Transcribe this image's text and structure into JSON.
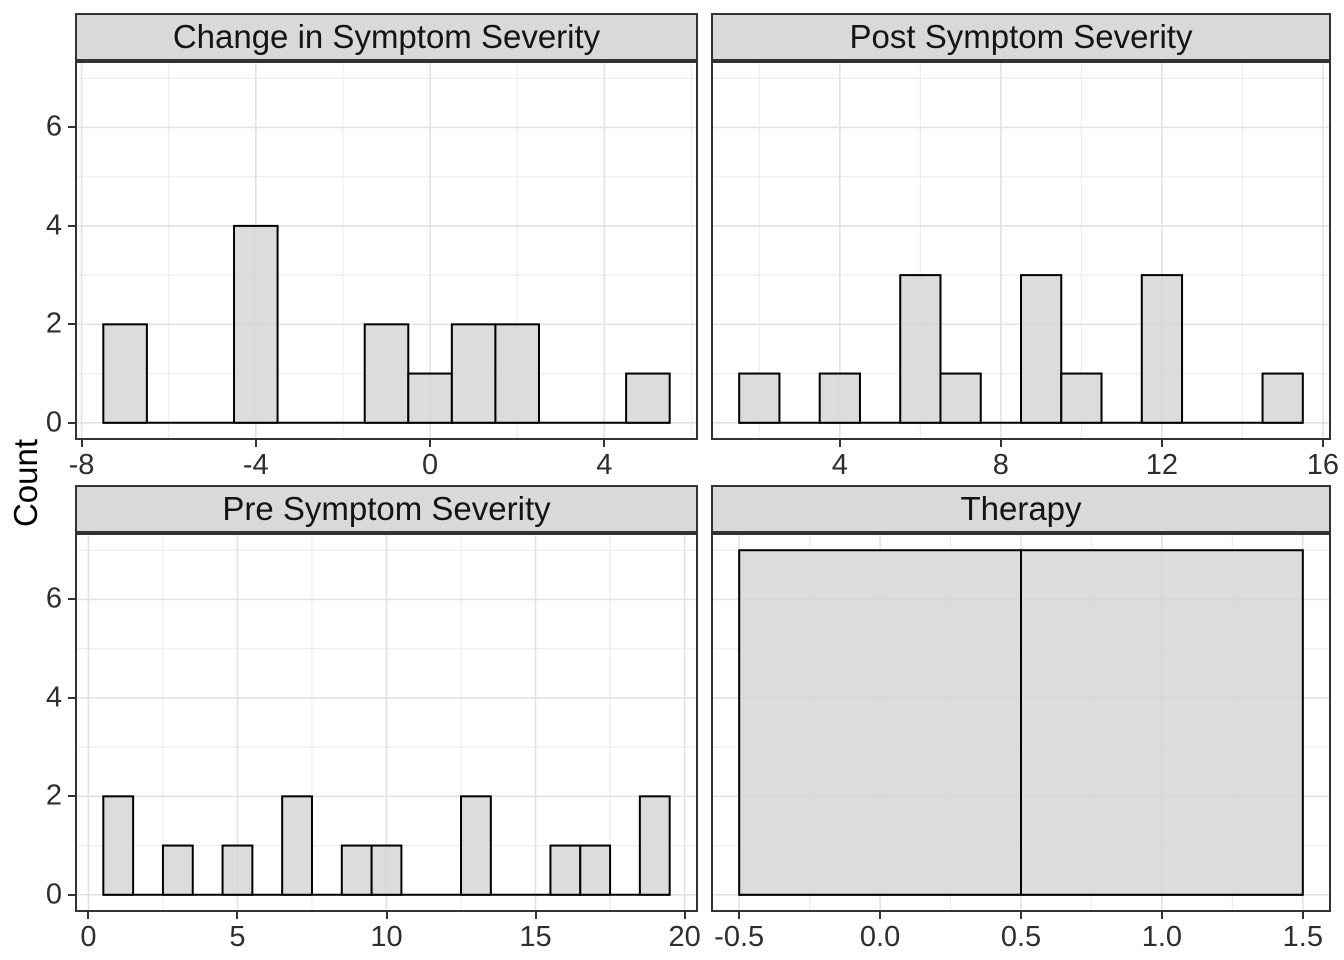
{
  "figure": {
    "y_axis_title": "Count"
  },
  "style": {
    "strip_background": "#d9d9d9",
    "strip_border": "#333333",
    "panel_background": "#ffffff",
    "panel_border": "#333333",
    "grid_major": "#e3e3e3",
    "grid_minor": "#eeeeee",
    "bar_fill": "#d4d4d4",
    "bar_stroke": "#000000",
    "tick_color": "#333333"
  },
  "chart_data": {
    "type": "bar",
    "subtype": "faceted-histograms",
    "ylabel": "Count",
    "grid": "on",
    "y": {
      "range": [
        -0.35,
        7.35
      ],
      "ticks": [
        {
          "v": 0,
          "label": "0"
        },
        {
          "v": 2,
          "label": "2"
        },
        {
          "v": 4,
          "label": "4"
        },
        {
          "v": 6,
          "label": "6"
        }
      ],
      "minor": [
        1,
        3,
        5,
        7
      ]
    },
    "facets": [
      {
        "title": "Change in Symptom Severity",
        "row": 0,
        "col": 0,
        "x_range": [
          -8.15,
          6.15
        ],
        "x_ticks": [
          {
            "v": -8,
            "label": "-8"
          },
          {
            "v": -4,
            "label": "-4"
          },
          {
            "v": 0,
            "label": "0"
          },
          {
            "v": 4,
            "label": "4"
          }
        ],
        "x_minor": [
          -6,
          -2,
          2,
          6
        ],
        "bins": [
          {
            "x0": -7.5,
            "x1": -6.5,
            "count": 2
          },
          {
            "x0": -4.5,
            "x1": -3.5,
            "count": 4
          },
          {
            "x0": -1.5,
            "x1": -0.5,
            "count": 2
          },
          {
            "x0": -0.5,
            "x1": 0.5,
            "count": 1
          },
          {
            "x0": 0.5,
            "x1": 1.5,
            "count": 2
          },
          {
            "x0": 1.5,
            "x1": 2.5,
            "count": 2
          },
          {
            "x0": 4.5,
            "x1": 5.5,
            "count": 1
          }
        ]
      },
      {
        "title": "Post Symptom Severity",
        "row": 0,
        "col": 1,
        "x_range": [
          0.8,
          16.2
        ],
        "x_ticks": [
          {
            "v": 4,
            "label": "4"
          },
          {
            "v": 8,
            "label": "8"
          },
          {
            "v": 12,
            "label": "12"
          },
          {
            "v": 16,
            "label": "16"
          }
        ],
        "x_minor": [
          2,
          6,
          10,
          14
        ],
        "bins": [
          {
            "x0": 1.5,
            "x1": 2.5,
            "count": 1
          },
          {
            "x0": 3.5,
            "x1": 4.5,
            "count": 1
          },
          {
            "x0": 5.5,
            "x1": 6.5,
            "count": 3
          },
          {
            "x0": 6.5,
            "x1": 7.5,
            "count": 1
          },
          {
            "x0": 8.5,
            "x1": 9.5,
            "count": 3
          },
          {
            "x0": 9.5,
            "x1": 10.5,
            "count": 1
          },
          {
            "x0": 11.5,
            "x1": 12.5,
            "count": 3
          },
          {
            "x0": 14.5,
            "x1": 15.5,
            "count": 1
          }
        ]
      },
      {
        "title": "Pre Symptom Severity",
        "row": 1,
        "col": 0,
        "x_range": [
          -0.45,
          20.45
        ],
        "x_ticks": [
          {
            "v": 0,
            "label": "0"
          },
          {
            "v": 5,
            "label": "5"
          },
          {
            "v": 10,
            "label": "10"
          },
          {
            "v": 15,
            "label": "15"
          },
          {
            "v": 20,
            "label": "20"
          }
        ],
        "x_minor": [
          2.5,
          7.5,
          12.5,
          17.5
        ],
        "bins": [
          {
            "x0": 0.5,
            "x1": 1.5,
            "count": 2
          },
          {
            "x0": 2.5,
            "x1": 3.5,
            "count": 1
          },
          {
            "x0": 4.5,
            "x1": 5.5,
            "count": 1
          },
          {
            "x0": 6.5,
            "x1": 7.5,
            "count": 2
          },
          {
            "x0": 8.5,
            "x1": 9.5,
            "count": 1
          },
          {
            "x0": 9.5,
            "x1": 10.5,
            "count": 1
          },
          {
            "x0": 12.5,
            "x1": 13.5,
            "count": 2
          },
          {
            "x0": 15.5,
            "x1": 16.5,
            "count": 1
          },
          {
            "x0": 16.5,
            "x1": 17.5,
            "count": 1
          },
          {
            "x0": 18.5,
            "x1": 19.5,
            "count": 2
          }
        ]
      },
      {
        "title": "Therapy",
        "row": 1,
        "col": 1,
        "x_range": [
          -0.6,
          1.6
        ],
        "x_ticks": [
          {
            "v": -0.5,
            "label": "-0.5"
          },
          {
            "v": 0.0,
            "label": "0.0"
          },
          {
            "v": 0.5,
            "label": "0.5"
          },
          {
            "v": 1.0,
            "label": "1.0"
          },
          {
            "v": 1.5,
            "label": "1.5"
          }
        ],
        "x_minor": [
          -0.25,
          0.25,
          0.75,
          1.25
        ],
        "bins": [
          {
            "x0": -0.5,
            "x1": 0.5,
            "count": 7
          },
          {
            "x0": 0.5,
            "x1": 1.5,
            "count": 7
          }
        ]
      }
    ]
  }
}
